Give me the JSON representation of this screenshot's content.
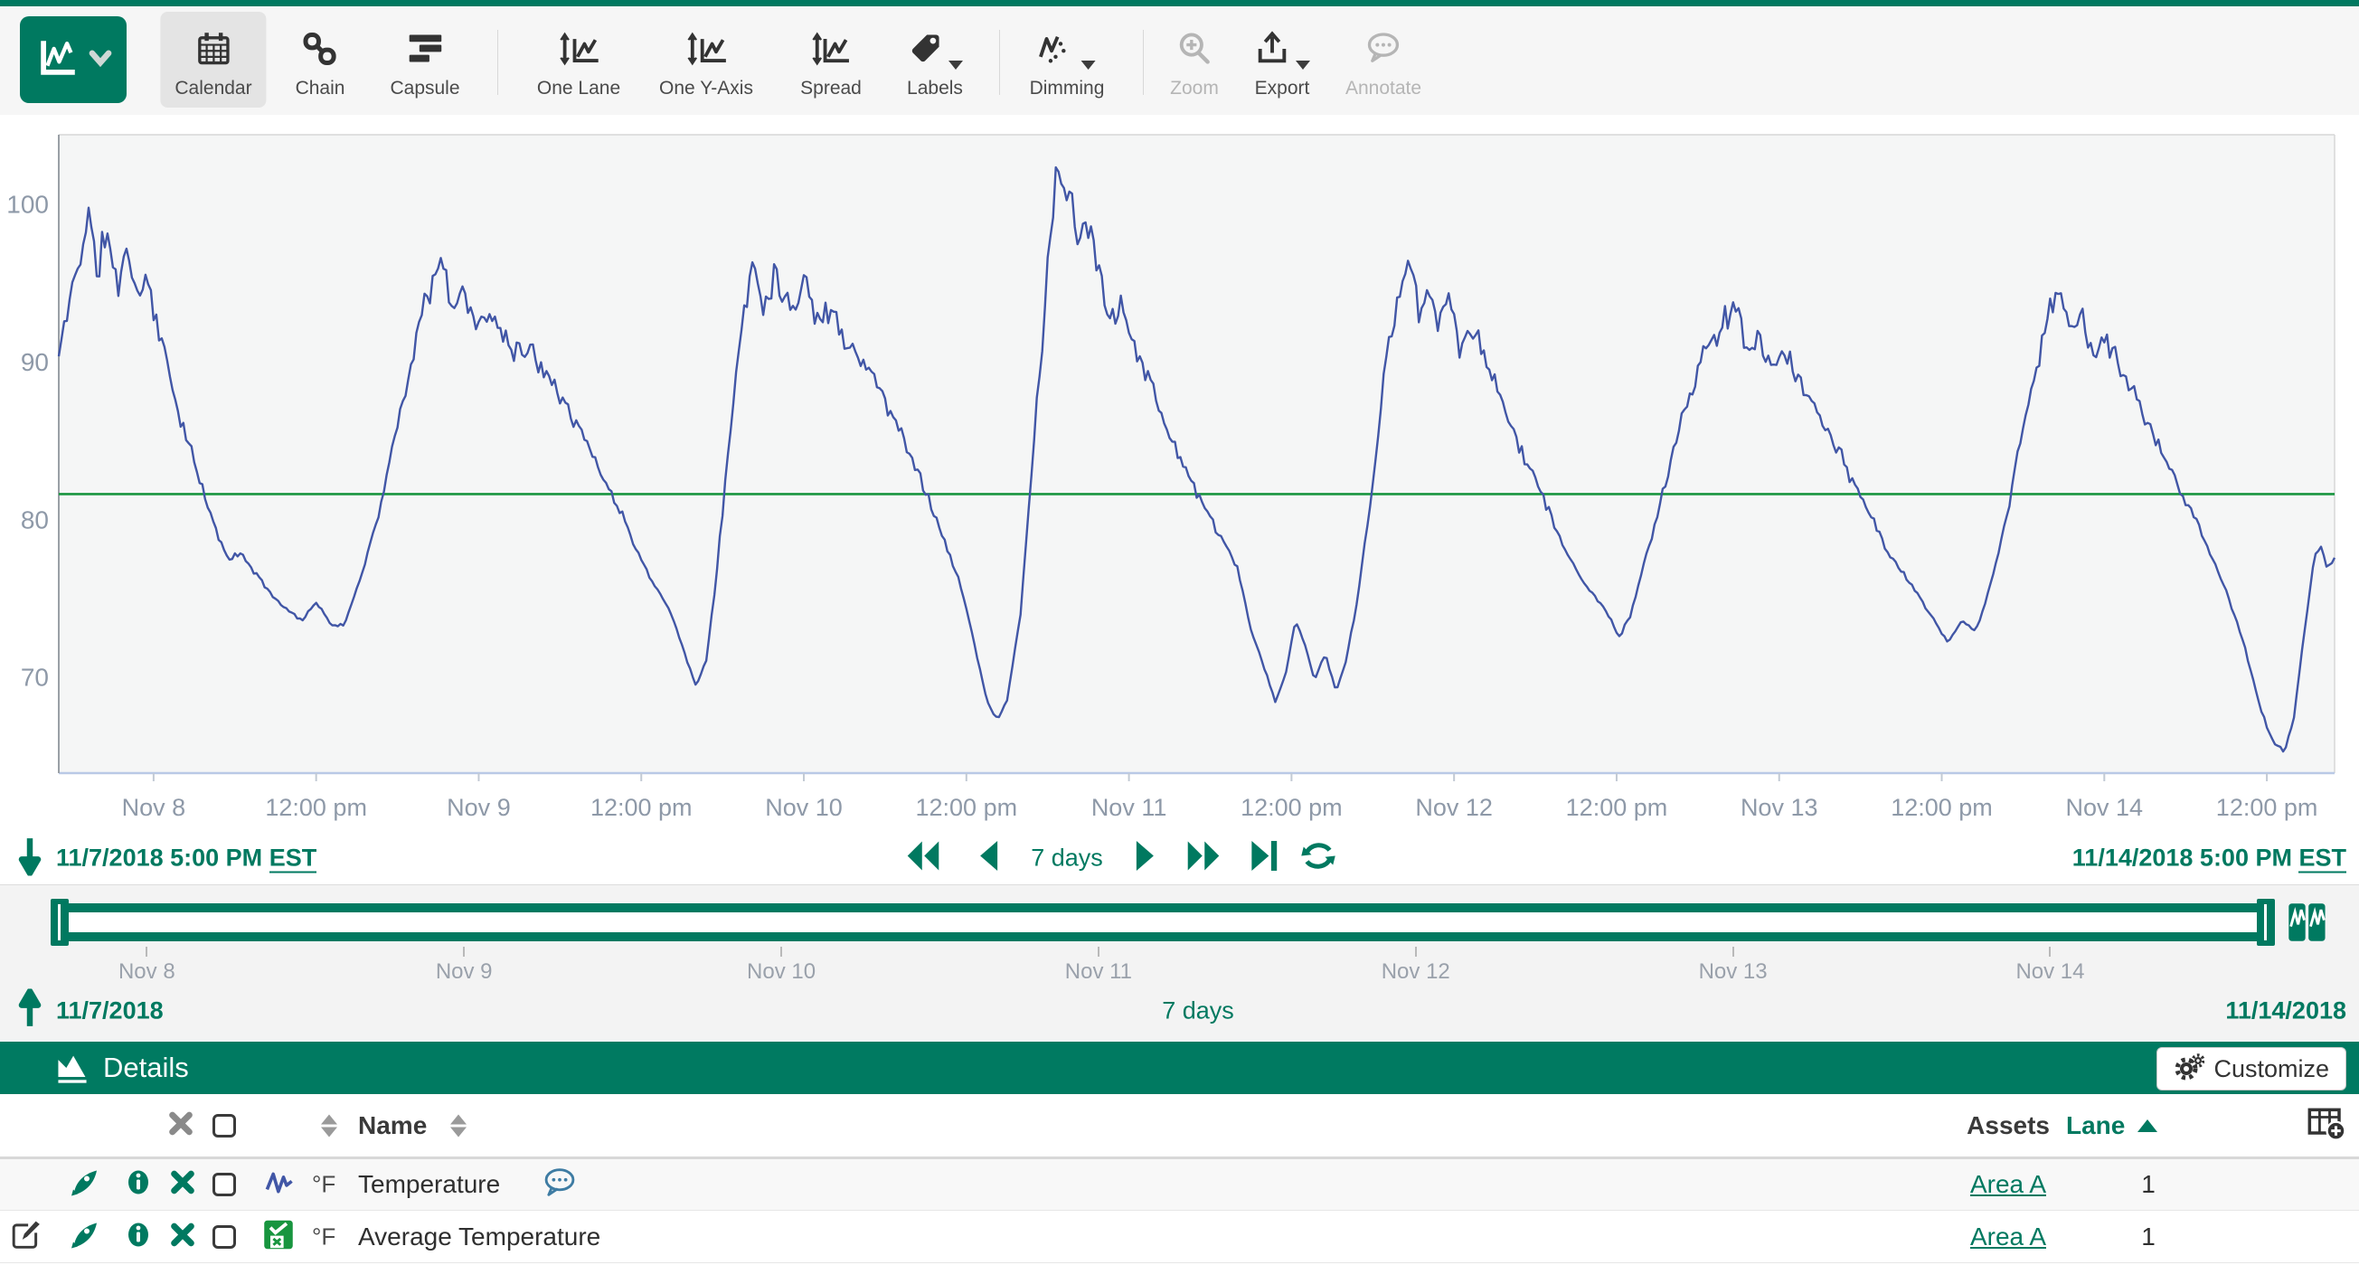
{
  "brand": {
    "green": "#007960",
    "series_blue": "#4156a6",
    "series_green": "#18953f"
  },
  "toolbar": {
    "buttons": [
      {
        "label": "Calendar"
      },
      {
        "label": "Chain"
      },
      {
        "label": "Capsule"
      },
      {
        "label": "One Lane"
      },
      {
        "label": "One Y-Axis"
      },
      {
        "label": "Spread"
      },
      {
        "label": "Labels"
      },
      {
        "label": "Dimming"
      },
      {
        "label": "Zoom"
      },
      {
        "label": "Export"
      },
      {
        "label": "Annotate"
      }
    ]
  },
  "chart_data": {
    "type": "line",
    "title": "",
    "xlabel": "",
    "ylabel": "",
    "grid": false,
    "legend": false,
    "x_axis": {
      "start": "11/7/2018 5:00 PM EST",
      "end": "11/14/2018 5:00 PM EST",
      "span_hours": 168,
      "ticks": [
        {
          "t": 7,
          "label": "Nov 8"
        },
        {
          "t": 19,
          "label": "12:00 pm"
        },
        {
          "t": 31,
          "label": "Nov 9"
        },
        {
          "t": 43,
          "label": "12:00 pm"
        },
        {
          "t": 55,
          "label": "Nov 10"
        },
        {
          "t": 67,
          "label": "12:00 pm"
        },
        {
          "t": 79,
          "label": "Nov 11"
        },
        {
          "t": 91,
          "label": "12:00 pm"
        },
        {
          "t": 103,
          "label": "Nov 12"
        },
        {
          "t": 115,
          "label": "12:00 pm"
        },
        {
          "t": 127,
          "label": "Nov 13"
        },
        {
          "t": 139,
          "label": "12:00 pm"
        },
        {
          "t": 151,
          "label": "Nov 14"
        },
        {
          "t": 163,
          "label": "12:00 pm"
        }
      ]
    },
    "y_axis": {
      "ticks": [
        70,
        80,
        90,
        100
      ],
      "min": 63.9,
      "max": 104.4,
      "unit": "°F"
    },
    "series": [
      {
        "name": "Temperature",
        "color": "#4156a6",
        "unit": "°F",
        "keypoints": [
          [
            0,
            90.3
          ],
          [
            0.7,
            93.5
          ],
          [
            1.5,
            96.5
          ],
          [
            2.2,
            99.5
          ],
          [
            2.8,
            95.5
          ],
          [
            3.5,
            98.5
          ],
          [
            4.3,
            94.5
          ],
          [
            5,
            97.5
          ],
          [
            5.8,
            94
          ],
          [
            6.5,
            95.5
          ],
          [
            7.5,
            91.5
          ],
          [
            8.5,
            88
          ],
          [
            10,
            83.5
          ],
          [
            11.5,
            79.5
          ],
          [
            12.5,
            77.5
          ],
          [
            13.5,
            77.8
          ],
          [
            15,
            76
          ],
          [
            16.5,
            74.5
          ],
          [
            18,
            73.6
          ],
          [
            19,
            74.8
          ],
          [
            20,
            73.4
          ],
          [
            21,
            73.2
          ],
          [
            22,
            75.5
          ],
          [
            23.5,
            80
          ],
          [
            25,
            86
          ],
          [
            26.5,
            92
          ],
          [
            27.5,
            95
          ],
          [
            28.2,
            96.2
          ],
          [
            29,
            93.5
          ],
          [
            30,
            94.5
          ],
          [
            31,
            92
          ],
          [
            32,
            93
          ],
          [
            33.5,
            91
          ],
          [
            35,
            90.5
          ],
          [
            36.5,
            89
          ],
          [
            38,
            86.5
          ],
          [
            40,
            83
          ],
          [
            42,
            79.5
          ],
          [
            43.5,
            76.5
          ],
          [
            45,
            74.5
          ],
          [
            46,
            72
          ],
          [
            47,
            69.5
          ],
          [
            47.8,
            71
          ],
          [
            48.5,
            76
          ],
          [
            49.5,
            85
          ],
          [
            50.5,
            93
          ],
          [
            51.3,
            96.5
          ],
          [
            52,
            93.5
          ],
          [
            53,
            96
          ],
          [
            54,
            93
          ],
          [
            55,
            95.5
          ],
          [
            56,
            92.5
          ],
          [
            57,
            93.5
          ],
          [
            58,
            91.5
          ],
          [
            59.5,
            90
          ],
          [
            61,
            87.5
          ],
          [
            63,
            84
          ],
          [
            65,
            79.5
          ],
          [
            66.5,
            76
          ],
          [
            67.5,
            72.5
          ],
          [
            68.5,
            68.5
          ],
          [
            69.3,
            67.2
          ],
          [
            70,
            68.5
          ],
          [
            71,
            74
          ],
          [
            72,
            85
          ],
          [
            73,
            96
          ],
          [
            73.8,
            102.8
          ],
          [
            74.5,
            100.5
          ],
          [
            75.2,
            97.5
          ],
          [
            76,
            99
          ],
          [
            76.8,
            95.5
          ],
          [
            77.5,
            93
          ],
          [
            78.5,
            93.8
          ],
          [
            79.5,
            91
          ],
          [
            81,
            87.5
          ],
          [
            83,
            83.5
          ],
          [
            85,
            80
          ],
          [
            87,
            77
          ],
          [
            88,
            73
          ],
          [
            89,
            70.5
          ],
          [
            89.8,
            68.4
          ],
          [
            90.5,
            70
          ],
          [
            91.3,
            73.5
          ],
          [
            92,
            72
          ],
          [
            92.7,
            69.8
          ],
          [
            93.5,
            71.5
          ],
          [
            94.3,
            69
          ],
          [
            95,
            71
          ],
          [
            95.8,
            74.5
          ],
          [
            96.8,
            81
          ],
          [
            98,
            90
          ],
          [
            99,
            94.5
          ],
          [
            99.7,
            96.8
          ],
          [
            100.4,
            93
          ],
          [
            101,
            95.5
          ],
          [
            101.8,
            92.5
          ],
          [
            102.5,
            94
          ],
          [
            103.5,
            91
          ],
          [
            104.5,
            91.8
          ],
          [
            105.5,
            89.5
          ],
          [
            107,
            86.5
          ],
          [
            109,
            82.5
          ],
          [
            111,
            78.5
          ],
          [
            112.5,
            76
          ],
          [
            114,
            74.5
          ],
          [
            115.2,
            72.6
          ],
          [
            116,
            73.8
          ],
          [
            117,
            77
          ],
          [
            118.5,
            82
          ],
          [
            120,
            87
          ],
          [
            121.5,
            90.5
          ],
          [
            123,
            92.5
          ],
          [
            123.8,
            93.3
          ],
          [
            124.8,
            90.5
          ],
          [
            125.5,
            92
          ],
          [
            126.5,
            89.5
          ],
          [
            127.5,
            90.5
          ],
          [
            129,
            88
          ],
          [
            131,
            85
          ],
          [
            133,
            81.5
          ],
          [
            135,
            78
          ],
          [
            137,
            75.5
          ],
          [
            138.5,
            73.5
          ],
          [
            139.5,
            72.2
          ],
          [
            140.5,
            73.6
          ],
          [
            141.5,
            72.8
          ],
          [
            142.5,
            75.5
          ],
          [
            144,
            81
          ],
          [
            145.5,
            88
          ],
          [
            147,
            93
          ],
          [
            147.8,
            94.8
          ],
          [
            148.5,
            91.5
          ],
          [
            149.3,
            93.5
          ],
          [
            150,
            90.5
          ],
          [
            151,
            91.5
          ],
          [
            152.5,
            89
          ],
          [
            154,
            86.5
          ],
          [
            156,
            83
          ],
          [
            158,
            79.5
          ],
          [
            160,
            75.5
          ],
          [
            161.5,
            71.5
          ],
          [
            162.5,
            68
          ],
          [
            163.5,
            65.8
          ],
          [
            164.3,
            65.3
          ],
          [
            165,
            67.5
          ],
          [
            165.8,
            73
          ],
          [
            166.5,
            77.5
          ],
          [
            167,
            78.3
          ],
          [
            167.5,
            76.8
          ],
          [
            168,
            77.6
          ]
        ],
        "noise": {
          "seed": 11,
          "step": 0.2,
          "base": 0.15,
          "floor": 76,
          "div": 30,
          "scale": 1.8
        }
      },
      {
        "name": "Average Temperature",
        "color": "#18953f",
        "unit": "°F",
        "value": 81.6
      }
    ]
  },
  "investigate_range": {
    "start_date": "11/7/2018 5:00 PM",
    "start_tz": "EST",
    "end_date": "11/14/2018 5:00 PM",
    "end_tz": "EST",
    "duration": "7 days"
  },
  "timebar": {
    "ticks": [
      "Nov 8",
      "Nov 9",
      "Nov 10",
      "Nov 11",
      "Nov 12",
      "Nov 13",
      "Nov 14"
    ]
  },
  "display_range": {
    "start": "11/7/2018",
    "duration": "7 days",
    "end": "11/14/2018"
  },
  "details": {
    "title": "Details",
    "customize": "Customize"
  },
  "table": {
    "header": {
      "name": "Name",
      "assets": "Assets",
      "lane": "Lane"
    },
    "rows": [
      {
        "name": "Temperature",
        "unit": "°F",
        "assets": "Area A",
        "lane": "1"
      },
      {
        "name": "Average Temperature",
        "unit": "°F",
        "assets": "Area A",
        "lane": "1"
      }
    ]
  }
}
